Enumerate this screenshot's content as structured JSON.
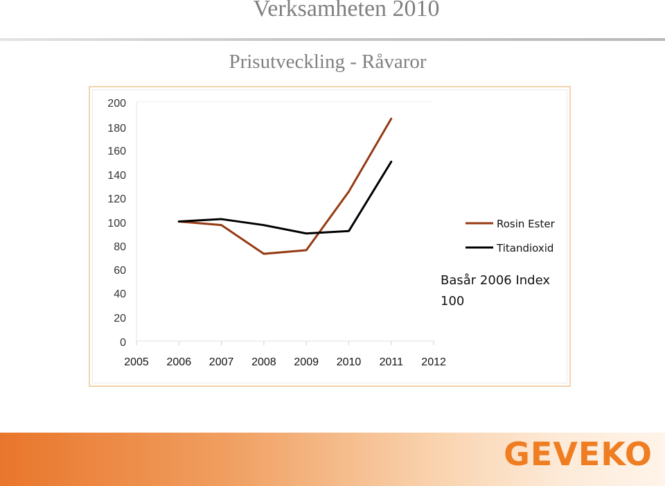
{
  "slide": {
    "title": "Verksamheten 2010"
  },
  "chart_data": {
    "type": "line",
    "title": "Prisutveckling - Råvaror",
    "x": [
      "2005",
      "2006",
      "2007",
      "2008",
      "2009",
      "2010",
      "2011",
      "2012"
    ],
    "yticks": [
      "200",
      "180",
      "160",
      "140",
      "120",
      "100",
      "80",
      "60",
      "40",
      "20",
      "0"
    ],
    "ylim": [
      0,
      200
    ],
    "grid": false,
    "legend_position": "right",
    "series": [
      {
        "name": "Rosin Ester",
        "color": "#953a12",
        "values": [
          null,
          100,
          97,
          73,
          76,
          125,
          186,
          null
        ]
      },
      {
        "name": "Titandioxid",
        "color": "#000000",
        "values": [
          null,
          100,
          102,
          97,
          90,
          92,
          150,
          null
        ]
      }
    ],
    "annotation": {
      "line1": "Basår 2006 Index",
      "line2": "100"
    }
  },
  "footer": {
    "logo_text": "GEVEKO",
    "logo_color": "#ef7d22"
  }
}
